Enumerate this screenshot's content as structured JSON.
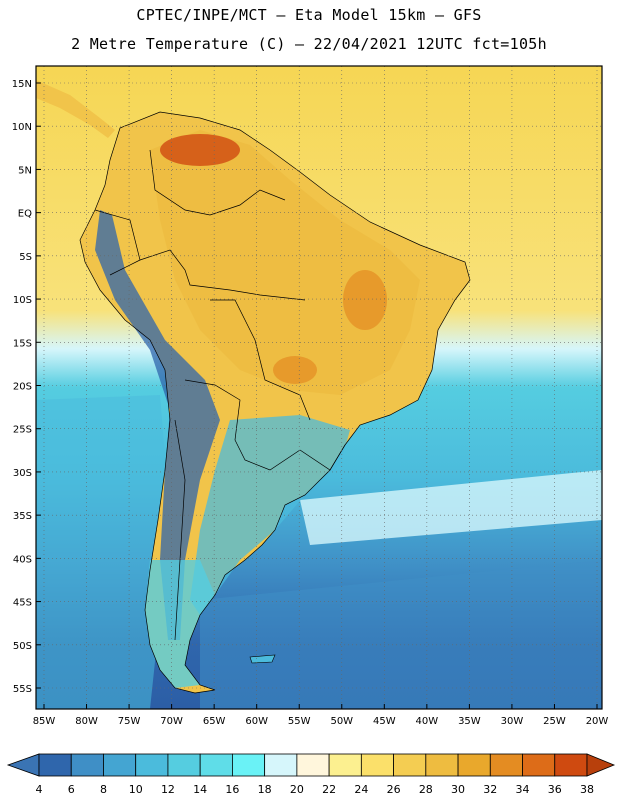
{
  "title_line1": "CPTEC/INPE/MCT –  Eta Model 15km – GFS",
  "title_line2": "2 Metre Temperature (C) – 22/04/2021 12UTC fct=105h",
  "lat_labels": [
    "15N",
    "10N",
    "5N",
    "EQ",
    "5S",
    "10S",
    "15S",
    "20S",
    "25S",
    "30S",
    "35S",
    "40S",
    "45S",
    "50S",
    "55S"
  ],
  "lon_labels": [
    "85W",
    "80W",
    "75W",
    "70W",
    "65W",
    "60W",
    "55W",
    "50W",
    "45W",
    "40W",
    "35W",
    "30W",
    "25W",
    "20W"
  ],
  "colorbar": {
    "values": [
      "4",
      "6",
      "8",
      "10",
      "12",
      "14",
      "16",
      "18",
      "20",
      "22",
      "24",
      "26",
      "28",
      "30",
      "32",
      "34",
      "36",
      "38"
    ],
    "colors": [
      "#3a74b4",
      "#2f66ac",
      "#3f8fc6",
      "#44a5d2",
      "#4bbbdc",
      "#55cde0",
      "#5fdde8",
      "#6af2f6",
      "#d6f6fb",
      "#fff6dc",
      "#fcf090",
      "#fbe06a",
      "#f4cd52",
      "#eebc40",
      "#e9a82c",
      "#e48c22",
      "#dd6c18",
      "#cf4a10",
      "#b8400c"
    ]
  }
}
